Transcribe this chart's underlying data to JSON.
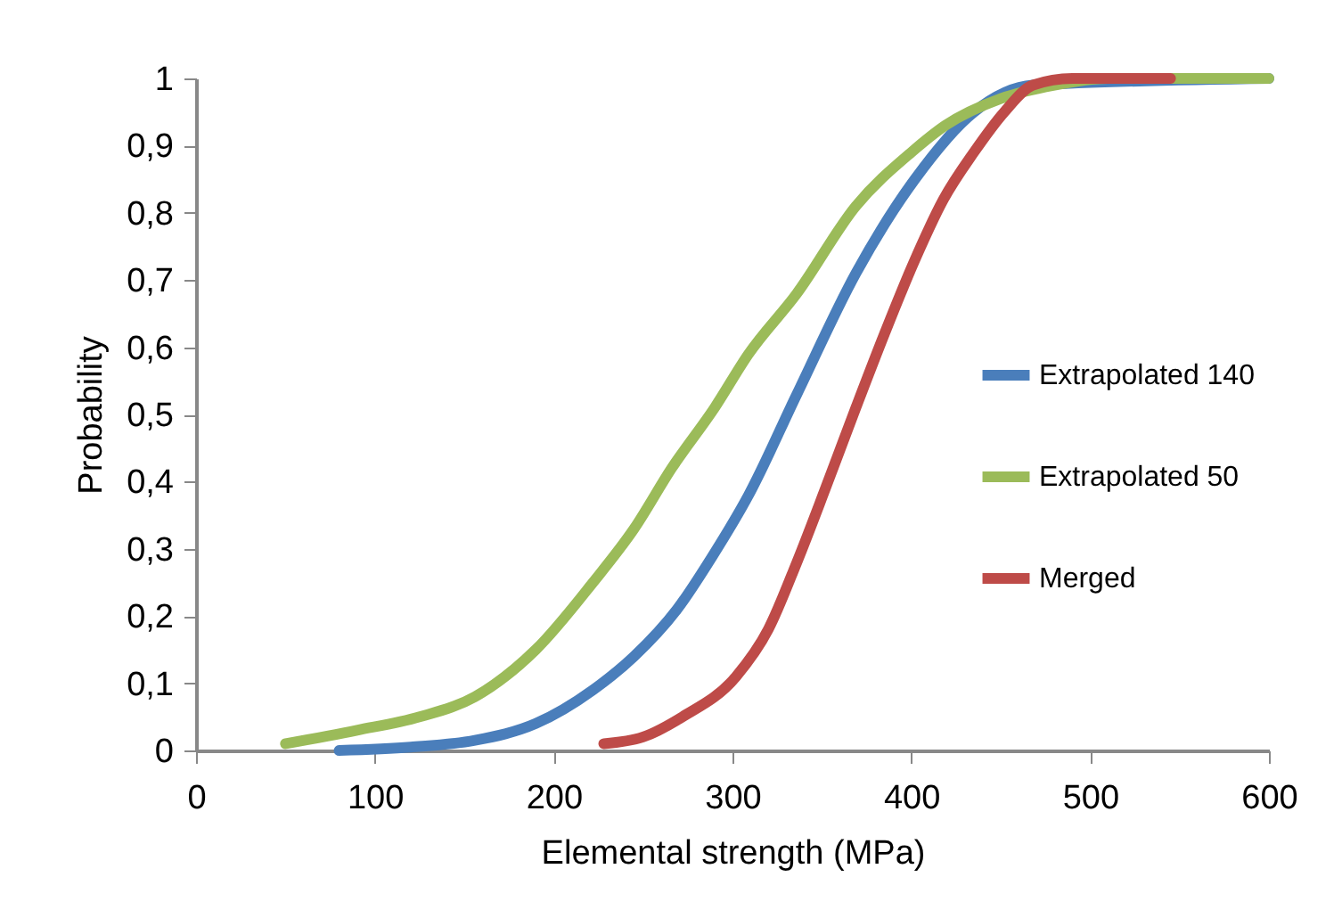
{
  "chart_data": {
    "type": "line",
    "xlabel": "Elemental strength (MPa)",
    "ylabel": "Probability",
    "xlim": [
      0,
      600
    ],
    "xticks": [
      0,
      100,
      200,
      300,
      400,
      500,
      600
    ],
    "ylim": [
      0,
      1
    ],
    "yticks": [
      {
        "value": 0,
        "label": "0"
      },
      {
        "value": 0.1,
        "label": "0,1"
      },
      {
        "value": 0.2,
        "label": "0,2"
      },
      {
        "value": 0.3,
        "label": "0,3"
      },
      {
        "value": 0.4,
        "label": "0,4"
      },
      {
        "value": 0.5,
        "label": "0,5"
      },
      {
        "value": 0.6,
        "label": "0,6"
      },
      {
        "value": 0.7,
        "label": "0,7"
      },
      {
        "value": 0.8,
        "label": "0,8"
      },
      {
        "value": 0.9,
        "label": "0,9"
      },
      {
        "value": 1,
        "label": "1"
      }
    ],
    "grid": false,
    "legend": "right",
    "marker": "none",
    "line_style": "solid",
    "series": [
      {
        "name": "Extrapolated 140",
        "color": "#4a7ebb",
        "x": [
          80,
          120,
          156,
          190,
          222,
          245,
          269,
          289,
          309,
          336,
          369,
          402,
          435,
          468,
          600
        ],
        "values": [
          0,
          0.005,
          0.015,
          0.04,
          0.09,
          0.14,
          0.21,
          0.29,
          0.38,
          0.53,
          0.71,
          0.85,
          0.95,
          0.99,
          1
        ]
      },
      {
        "name": "Extrapolated 50",
        "color": "#9bbb59",
        "x": [
          50,
          90,
          125,
          156,
          190,
          222,
          245,
          266,
          290,
          309,
          336,
          369,
          400,
          419,
          450,
          480,
          510,
          600
        ],
        "values": [
          0.01,
          0.03,
          0.05,
          0.08,
          0.15,
          0.25,
          0.33,
          0.42,
          0.51,
          0.59,
          0.68,
          0.81,
          0.89,
          0.93,
          0.97,
          0.99,
          1,
          1
        ]
      },
      {
        "name": "Merged",
        "color": "#be4b48",
        "x": [
          228,
          250,
          272,
          302,
          320,
          336,
          352,
          369,
          385,
          402,
          418,
          435,
          452,
          468,
          490,
          545
        ],
        "values": [
          0.01,
          0.02,
          0.05,
          0.11,
          0.18,
          0.28,
          0.39,
          0.51,
          0.62,
          0.73,
          0.82,
          0.89,
          0.95,
          0.99,
          1,
          1
        ]
      }
    ]
  }
}
